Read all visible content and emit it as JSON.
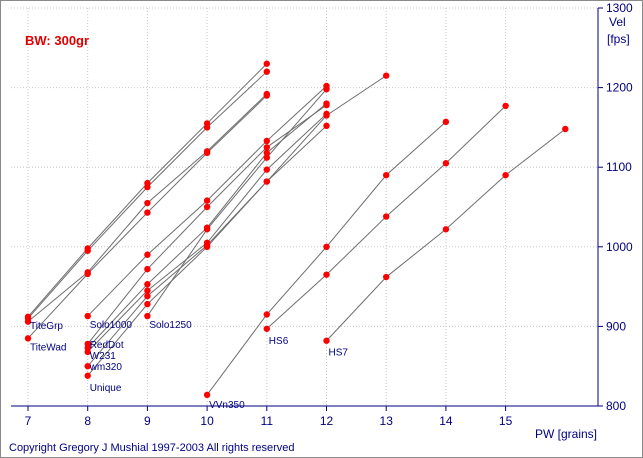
{
  "chart_data": {
    "type": "line",
    "title": "BW: 300gr",
    "xlabel": "PW [grains]",
    "ylabel_line1": "Vel",
    "ylabel_line2": "[fps]",
    "xlim": [
      7,
      16
    ],
    "ylim": [
      800,
      1300
    ],
    "xticks": [
      "7",
      "8",
      "9",
      "10",
      "11",
      "12",
      "13",
      "14",
      "15"
    ],
    "yticks": [
      "800",
      "900",
      "1000",
      "1100",
      "1200",
      "1300"
    ],
    "grid": true,
    "line_color": "#6e6e6e",
    "point_color": "#ff0000",
    "axis_color": "#000080",
    "grid_color": "#c8c8c8",
    "copyright": "Copyright Gregory J Mushial 1997-2003   All rights reserved",
    "series": [
      {
        "label": "TiteGrp",
        "x": [
          7,
          8,
          9,
          10,
          11
        ],
        "y": [
          912,
          998,
          1080,
          1155,
          1230
        ]
      },
      {
        "label": "",
        "x": [
          7,
          8,
          9,
          10,
          11
        ],
        "y": [
          910,
          995,
          1075,
          1150,
          1220
        ]
      },
      {
        "label": "",
        "x": [
          7,
          8,
          9,
          10,
          11
        ],
        "y": [
          906,
          968,
          1055,
          1120,
          1192
        ]
      },
      {
        "label": "TiteWad",
        "x": [
          7,
          8,
          9,
          10,
          11
        ],
        "y": [
          885,
          966,
          1043,
          1118,
          1190
        ]
      },
      {
        "label": "Solo1000",
        "x": [
          8,
          9,
          10,
          11,
          12
        ],
        "y": [
          913,
          990,
          1058,
          1133,
          1202
        ]
      },
      {
        "label": "Solo1250",
        "x": [
          9,
          10,
          11,
          12
        ],
        "y": [
          913,
          1022,
          1112,
          1198
        ]
      },
      {
        "label": "RedDot",
        "x": [
          8,
          9,
          10,
          11,
          12
        ],
        "y": [
          878,
          972,
          1050,
          1125,
          1178
        ]
      },
      {
        "label": "W231",
        "x": [
          8,
          9,
          10,
          11,
          12
        ],
        "y": [
          873,
          953,
          1024,
          1118,
          1180
        ]
      },
      {
        "label": "",
        "x": [
          8,
          9,
          10,
          11,
          12
        ],
        "y": [
          868,
          945,
          1005,
          1097,
          1167
        ]
      },
      {
        "label": "wm320",
        "x": [
          8,
          9,
          10,
          11,
          12
        ],
        "y": [
          850,
          938,
          1002,
          1082,
          1152
        ]
      },
      {
        "label": "Unique",
        "x": [
          8,
          9,
          10,
          11,
          12,
          13
        ],
        "y": [
          838,
          928,
          1000,
          1082,
          1165,
          1215
        ]
      },
      {
        "label": "VVn350",
        "x": [
          10,
          11,
          12,
          13,
          14
        ],
        "y": [
          814,
          915,
          1000,
          1090,
          1157
        ]
      },
      {
        "label": "HS6",
        "x": [
          11,
          12,
          13,
          14,
          15
        ],
        "y": [
          897,
          965,
          1038,
          1105,
          1177
        ]
      },
      {
        "label": "HS7",
        "x": [
          12,
          13,
          14,
          15,
          16
        ],
        "y": [
          882,
          962,
          1022,
          1090,
          1148
        ]
      }
    ]
  }
}
